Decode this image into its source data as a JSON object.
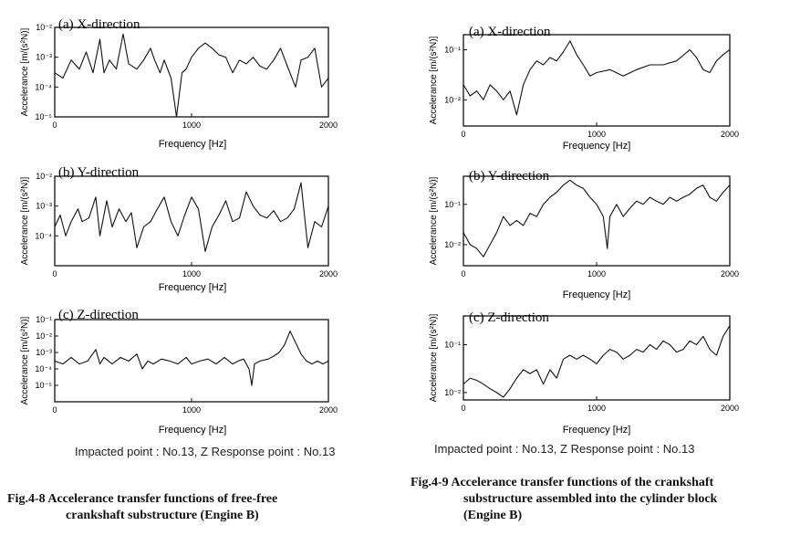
{
  "left_figure": {
    "note": "Impacted point : No.13, Z   Response point : No.13",
    "caption": [
      "Fig.4-8 Accelerance transfer functions of free-free",
      "crankshaft substructure (Engine B)"
    ]
  },
  "right_figure": {
    "note": "Impacted point : No.13, Z   Response point : No.13",
    "caption": [
      "Fig.4-9 Accelerance transfer functions of the crankshaft",
      "substructure assembled into the cylinder block",
      "(Engine B)"
    ]
  },
  "chart_data": [
    {
      "type": "line",
      "panel": "left-a",
      "title": "(a) X-direction",
      "xlabel": "Frequency [Hz]",
      "ylabel": "Accelerance [m/(s²N)]",
      "xlim": [
        0,
        2000
      ],
      "ylim": [
        1e-05,
        0.01
      ],
      "y_scale": "log",
      "x_ticks": [
        0,
        1000,
        2000
      ],
      "y_ticks": [
        "10⁻⁵",
        "10⁻⁴",
        "10⁻³",
        "10⁻²"
      ],
      "x": [
        0,
        60,
        120,
        180,
        230,
        280,
        330,
        360,
        400,
        450,
        500,
        540,
        600,
        650,
        700,
        730,
        770,
        800,
        850,
        890,
        930,
        960,
        1000,
        1050,
        1100,
        1150,
        1200,
        1250,
        1300,
        1350,
        1400,
        1450,
        1500,
        1550,
        1600,
        1650,
        1700,
        1760,
        1800,
        1850,
        1900,
        1950,
        2000
      ],
      "y": [
        0.0003,
        0.0002,
        0.0008,
        0.0004,
        0.0015,
        0.0003,
        0.004,
        0.0003,
        0.0008,
        0.0004,
        0.006,
        0.0006,
        0.0004,
        0.0008,
        0.002,
        0.0008,
        0.0003,
        0.0008,
        0.0002,
        1e-05,
        0.0003,
        0.0004,
        0.001,
        0.002,
        0.003,
        0.002,
        0.0012,
        0.001,
        0.0003,
        0.0008,
        0.0006,
        0.001,
        0.0005,
        0.0004,
        0.0008,
        0.002,
        0.0005,
        0.0001,
        0.0008,
        0.001,
        0.002,
        0.0001,
        0.0002
      ]
    },
    {
      "type": "line",
      "panel": "left-b",
      "title": "(b) Y-direction",
      "xlabel": "Frequency [Hz]",
      "ylabel": "Accelerance [m/(s²N)]",
      "xlim": [
        0,
        2000
      ],
      "ylim": [
        1e-05,
        0.01
      ],
      "y_scale": "log",
      "x_ticks": [
        0,
        1000,
        2000
      ],
      "y_ticks": [
        "10⁻⁴",
        "10⁻³",
        "10⁻²"
      ],
      "x": [
        0,
        40,
        80,
        120,
        170,
        200,
        250,
        300,
        330,
        380,
        420,
        470,
        520,
        560,
        600,
        650,
        700,
        750,
        800,
        850,
        900,
        950,
        1000,
        1050,
        1100,
        1150,
        1200,
        1250,
        1300,
        1350,
        1400,
        1450,
        1500,
        1550,
        1600,
        1650,
        1700,
        1750,
        1800,
        1850,
        1900,
        1950,
        2000
      ],
      "y": [
        0.0002,
        0.0005,
        0.0001,
        0.0003,
        0.0008,
        0.0003,
        0.0004,
        0.002,
        0.0001,
        0.0015,
        0.0002,
        0.0008,
        0.0003,
        0.0006,
        4e-05,
        0.0002,
        0.0003,
        0.0008,
        0.002,
        0.0003,
        0.0001,
        0.0005,
        0.002,
        0.0008,
        3e-05,
        0.0002,
        0.0005,
        0.0015,
        0.0003,
        0.0004,
        0.003,
        0.001,
        0.0005,
        0.0004,
        0.0007,
        0.0003,
        0.0004,
        0.0008,
        0.006,
        4e-05,
        0.0003,
        0.0002,
        0.001
      ]
    },
    {
      "type": "line",
      "panel": "left-c",
      "title": "(c) Z-direction",
      "xlabel": "Frequency [Hz]",
      "ylabel": "Accelerance [m/(s²N)]",
      "xlim": [
        0,
        2000
      ],
      "ylim": [
        1e-06,
        0.1
      ],
      "y_scale": "log",
      "x_ticks": [
        0,
        1000,
        2000
      ],
      "y_ticks": [
        "10⁻⁵",
        "10⁻⁴",
        "10⁻³",
        "10⁻²",
        "10⁻¹"
      ],
      "x": [
        0,
        60,
        120,
        180,
        240,
        300,
        330,
        360,
        420,
        480,
        540,
        600,
        640,
        680,
        720,
        780,
        840,
        900,
        960,
        1000,
        1060,
        1120,
        1180,
        1240,
        1300,
        1340,
        1380,
        1420,
        1440,
        1460,
        1500,
        1560,
        1600,
        1640,
        1680,
        1720,
        1760,
        1800,
        1840,
        1880,
        1920,
        1960,
        2000
      ],
      "y": [
        0.0003,
        0.0002,
        0.0005,
        0.0002,
        0.0003,
        0.0015,
        0.0002,
        0.0005,
        0.0002,
        0.0005,
        0.0003,
        0.0008,
        0.0001,
        0.0003,
        0.0002,
        0.0004,
        0.0003,
        0.0002,
        0.0005,
        0.0002,
        0.0003,
        0.0004,
        0.0002,
        0.0005,
        0.0002,
        0.0003,
        0.0004,
        0.0001,
        1e-05,
        0.0002,
        0.0003,
        0.0004,
        0.0006,
        0.001,
        0.003,
        0.02,
        0.004,
        0.0008,
        0.0003,
        0.0002,
        0.0003,
        0.0002,
        0.0003
      ]
    },
    {
      "type": "line",
      "panel": "right-a",
      "title": "(a) X-direction",
      "xlabel": "Frequency [Hz]",
      "ylabel": "Accelerance [m/(s²N)]",
      "xlim": [
        0,
        2000
      ],
      "ylim": [
        0.003,
        0.2
      ],
      "y_scale": "log",
      "x_ticks": [
        0,
        1000,
        2000
      ],
      "y_ticks": [
        "10⁻²",
        "10⁻¹"
      ],
      "x": [
        0,
        50,
        100,
        150,
        200,
        250,
        300,
        350,
        400,
        450,
        500,
        550,
        600,
        650,
        700,
        750,
        800,
        850,
        900,
        950,
        1000,
        1100,
        1200,
        1300,
        1400,
        1500,
        1600,
        1700,
        1750,
        1800,
        1850,
        1900,
        1950,
        2000
      ],
      "y": [
        0.02,
        0.012,
        0.015,
        0.01,
        0.02,
        0.015,
        0.01,
        0.015,
        0.005,
        0.02,
        0.04,
        0.06,
        0.05,
        0.07,
        0.06,
        0.09,
        0.15,
        0.08,
        0.05,
        0.03,
        0.035,
        0.04,
        0.03,
        0.04,
        0.05,
        0.05,
        0.06,
        0.1,
        0.07,
        0.04,
        0.035,
        0.06,
        0.08,
        0.1
      ]
    },
    {
      "type": "line",
      "panel": "right-b",
      "title": "(b) Y-direction",
      "xlabel": "Frequency [Hz]",
      "ylabel": "Accelerance [m/(s²N)]",
      "xlim": [
        0,
        2000
      ],
      "ylim": [
        0.003,
        0.5
      ],
      "y_scale": "log",
      "x_ticks": [
        0,
        1000,
        2000
      ],
      "y_ticks": [
        "10⁻²",
        "10⁻¹"
      ],
      "x": [
        0,
        50,
        100,
        150,
        200,
        250,
        300,
        350,
        400,
        450,
        500,
        550,
        600,
        650,
        700,
        750,
        800,
        850,
        900,
        950,
        1000,
        1050,
        1080,
        1100,
        1150,
        1200,
        1250,
        1300,
        1350,
        1400,
        1450,
        1500,
        1550,
        1600,
        1650,
        1700,
        1750,
        1800,
        1850,
        1900,
        1950,
        2000
      ],
      "y": [
        0.02,
        0.01,
        0.008,
        0.005,
        0.01,
        0.02,
        0.05,
        0.03,
        0.04,
        0.03,
        0.06,
        0.05,
        0.1,
        0.15,
        0.2,
        0.3,
        0.4,
        0.3,
        0.25,
        0.15,
        0.1,
        0.05,
        0.008,
        0.05,
        0.1,
        0.05,
        0.08,
        0.12,
        0.1,
        0.15,
        0.12,
        0.1,
        0.15,
        0.12,
        0.15,
        0.18,
        0.25,
        0.3,
        0.15,
        0.12,
        0.2,
        0.3
      ]
    },
    {
      "type": "line",
      "panel": "right-c",
      "title": "(c) Z-direction",
      "xlabel": "Frequency [Hz]",
      "ylabel": "Accelerance [m/(s²N)]",
      "xlim": [
        0,
        2000
      ],
      "ylim": [
        0.007,
        0.4
      ],
      "y_scale": "log",
      "x_ticks": [
        0,
        1000,
        2000
      ],
      "y_ticks": [
        "10⁻²",
        "10⁻¹"
      ],
      "x": [
        0,
        50,
        100,
        150,
        200,
        250,
        300,
        350,
        400,
        450,
        500,
        550,
        600,
        650,
        700,
        750,
        800,
        850,
        900,
        950,
        1000,
        1050,
        1100,
        1150,
        1200,
        1250,
        1300,
        1350,
        1400,
        1450,
        1500,
        1550,
        1600,
        1650,
        1700,
        1750,
        1800,
        1850,
        1900,
        1950,
        2000
      ],
      "y": [
        0.015,
        0.02,
        0.018,
        0.015,
        0.012,
        0.01,
        0.008,
        0.012,
        0.02,
        0.03,
        0.025,
        0.03,
        0.015,
        0.03,
        0.02,
        0.05,
        0.06,
        0.05,
        0.06,
        0.05,
        0.04,
        0.06,
        0.08,
        0.07,
        0.05,
        0.06,
        0.08,
        0.07,
        0.1,
        0.08,
        0.12,
        0.1,
        0.07,
        0.08,
        0.12,
        0.1,
        0.15,
        0.08,
        0.06,
        0.15,
        0.25
      ]
    }
  ]
}
